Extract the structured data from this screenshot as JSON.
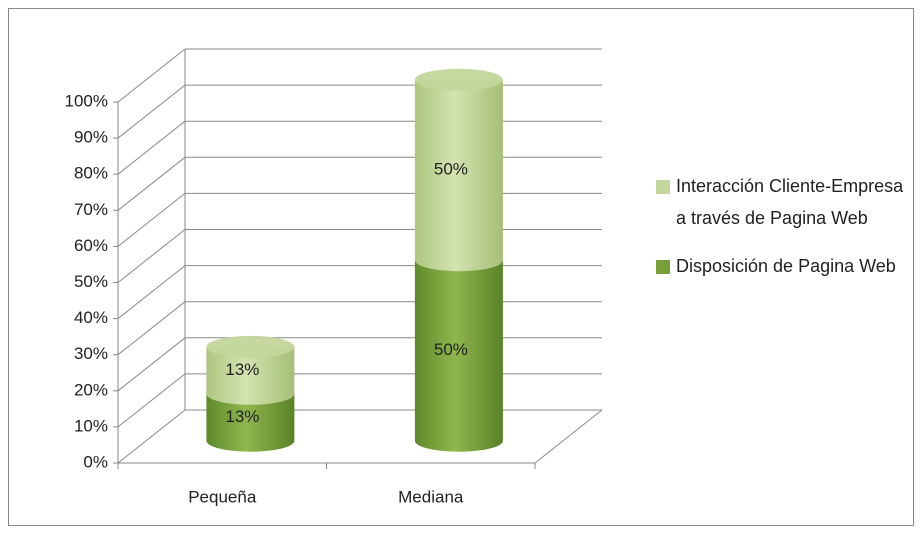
{
  "chart_data": {
    "type": "bar3d-stacked",
    "categories": [
      "Pequeña",
      "Mediana"
    ],
    "series": [
      {
        "name": "Disposición de Pagina Web",
        "color": "#77a03a",
        "values": [
          13,
          50
        ],
        "value_labels": [
          "13%",
          "50%"
        ]
      },
      {
        "name": "Interacción Cliente-Empresa a través de Pagina Web",
        "color": "#c3d69b",
        "values": [
          13,
          50
        ],
        "value_labels": [
          "13%",
          "50%"
        ]
      }
    ],
    "ylim": [
      0,
      100
    ],
    "yticks": [
      {
        "value": 0,
        "label": "0%"
      },
      {
        "value": 10,
        "label": "10%"
      },
      {
        "value": 20,
        "label": "20%"
      },
      {
        "value": 30,
        "label": "30%"
      },
      {
        "value": 40,
        "label": "40%"
      },
      {
        "value": 50,
        "label": "50%"
      },
      {
        "value": 60,
        "label": "60%"
      },
      {
        "value": 70,
        "label": "70%"
      },
      {
        "value": 80,
        "label": "80%"
      },
      {
        "value": 90,
        "label": "90%"
      },
      {
        "value": 100,
        "label": "100%"
      }
    ],
    "grid": true,
    "legend": "right"
  }
}
